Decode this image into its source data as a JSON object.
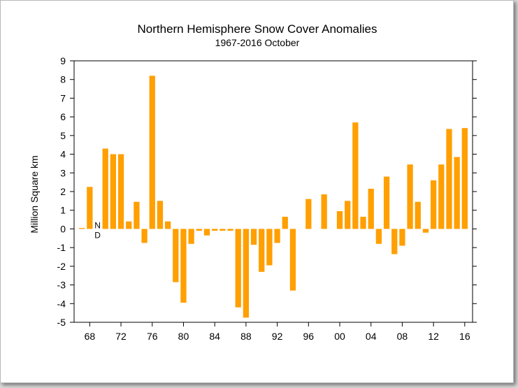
{
  "chart_data": {
    "type": "bar",
    "title": "Northern Hemisphere Snow Cover Anomalies",
    "subtitle": "1967-2016 October",
    "ylabel": "Million Square km",
    "xlabel": "",
    "ylim": [
      -5,
      9
    ],
    "yticks": [
      -5,
      -4,
      -3,
      -2,
      -1,
      0,
      1,
      2,
      3,
      4,
      5,
      6,
      7,
      8,
      9
    ],
    "xlim": [
      1966,
      2017
    ],
    "xtick_years": [
      1968,
      1972,
      1976,
      1980,
      1984,
      1988,
      1992,
      1996,
      2000,
      2004,
      2008,
      2012,
      2016
    ],
    "xtick_labels": [
      "68",
      "72",
      "76",
      "80",
      "84",
      "88",
      "92",
      "96",
      "00",
      "04",
      "08",
      "12",
      "16"
    ],
    "bar_color": "#ff9f00",
    "no_data_annotation": {
      "year": 1969,
      "line1": "N",
      "line2": "D"
    },
    "x": [
      1967,
      1968,
      1970,
      1971,
      1972,
      1973,
      1974,
      1975,
      1976,
      1977,
      1978,
      1979,
      1980,
      1981,
      1982,
      1983,
      1984,
      1985,
      1986,
      1987,
      1988,
      1989,
      1990,
      1991,
      1992,
      1993,
      1994,
      1996,
      1998,
      2000,
      2001,
      2002,
      2003,
      2004,
      2005,
      2006,
      2007,
      2008,
      2009,
      2010,
      2011,
      2012,
      2013,
      2014,
      2015,
      2016
    ],
    "values": [
      0.05,
      2.25,
      4.3,
      4.0,
      4.0,
      0.4,
      1.45,
      -0.75,
      8.2,
      1.5,
      0.4,
      -2.85,
      -3.95,
      -0.8,
      -0.1,
      -0.35,
      -0.1,
      -0.1,
      -0.1,
      -4.2,
      -4.75,
      -0.85,
      -2.3,
      -1.95,
      -0.75,
      0.65,
      -3.3,
      1.6,
      1.85,
      0.95,
      1.5,
      5.7,
      0.65,
      2.15,
      -0.8,
      2.8,
      -1.35,
      -0.9,
      3.45,
      1.45,
      -0.2,
      2.6,
      3.45,
      5.35,
      3.85,
      5.4
    ]
  }
}
